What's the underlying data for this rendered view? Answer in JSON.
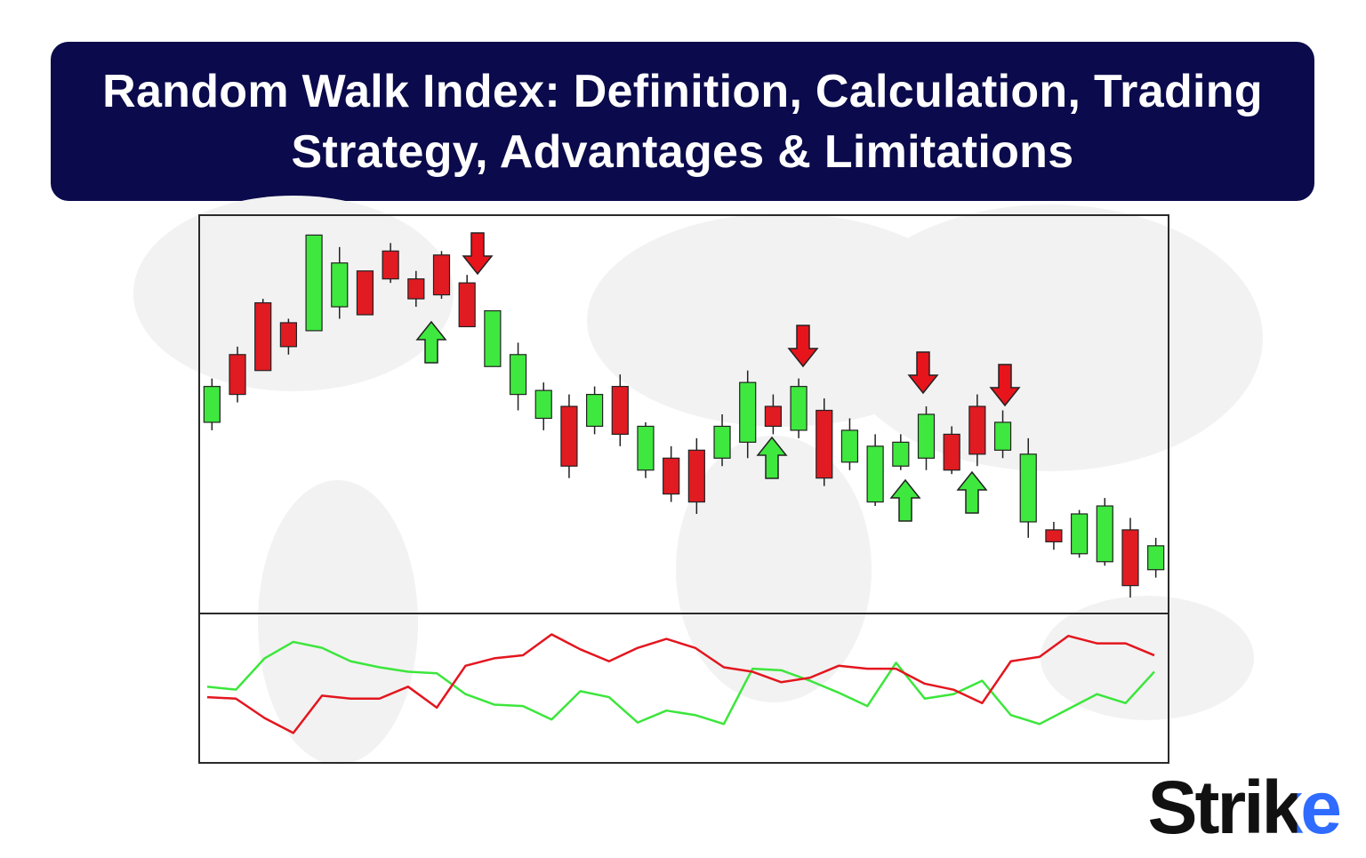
{
  "banner": {
    "title": "Random Walk Index: Definition, Calculation, Trading Strategy, Advantages & Limitations"
  },
  "logo": "Strike",
  "chart_data": [
    {
      "type": "candlestick",
      "up_color": "#3fe83f",
      "down_color": "#e01b22",
      "ylim": [
        0,
        100
      ],
      "categories": [
        null,
        null,
        null,
        null,
        null,
        null,
        null,
        null,
        null,
        null,
        null,
        null,
        null,
        null,
        null,
        null,
        null,
        null,
        null,
        null,
        null,
        null,
        null,
        null,
        null,
        null,
        null,
        null,
        null,
        null,
        null,
        null,
        null,
        null,
        null,
        null,
        null,
        null
      ],
      "open": [
        48,
        65,
        78,
        73,
        71,
        77,
        86,
        91,
        84,
        90,
        83,
        62,
        55,
        49,
        52,
        47,
        57,
        36,
        39,
        41,
        39,
        43,
        52,
        46,
        51,
        38,
        28,
        37,
        39,
        45,
        52,
        41,
        23,
        21,
        15,
        13,
        21,
        11
      ],
      "high": [
        59,
        67,
        79,
        74,
        95,
        92,
        86,
        93,
        86,
        91,
        85,
        76,
        68,
        58,
        55,
        57,
        60,
        48,
        42,
        44,
        50,
        61,
        55,
        59,
        54,
        49,
        45,
        45,
        52,
        47,
        55,
        51,
        44,
        23,
        26,
        29,
        24,
        19
      ],
      "low": [
        46,
        53,
        61,
        65,
        71,
        74,
        75,
        83,
        77,
        79,
        72,
        62,
        51,
        46,
        34,
        45,
        42,
        34,
        28,
        25,
        37,
        39,
        45,
        44,
        32,
        36,
        27,
        36,
        36,
        35,
        37,
        39,
        19,
        16,
        14,
        12,
        4,
        9
      ],
      "close": [
        57,
        55,
        61,
        67,
        95,
        88,
        75,
        84,
        79,
        80,
        72,
        76,
        65,
        56,
        37,
        55,
        45,
        47,
        30,
        28,
        47,
        58,
        47,
        57,
        34,
        46,
        42,
        43,
        50,
        36,
        40,
        48,
        40,
        18,
        25,
        27,
        7,
        17
      ]
    },
    {
      "type": "line",
      "ylim": [
        0,
        100
      ],
      "categories": [
        null,
        null,
        null,
        null,
        null,
        null,
        null,
        null,
        null,
        null,
        null,
        null,
        null,
        null,
        null,
        null,
        null,
        null,
        null,
        null,
        null,
        null,
        null,
        null,
        null,
        null,
        null,
        null,
        null,
        null,
        null,
        null,
        null,
        null
      ],
      "series": [
        {
          "color": "#3ce63c",
          "values": [
            51,
            49,
            70,
            81,
            77,
            68,
            64,
            61,
            60,
            46,
            39,
            38,
            29,
            48,
            44,
            27,
            35,
            32,
            26,
            63,
            62,
            55,
            47,
            38,
            67,
            43,
            46,
            55,
            32,
            26,
            36,
            46,
            40,
            61
          ]
        },
        {
          "color": "#e3161e",
          "values": [
            44,
            43,
            30,
            20,
            45,
            43,
            43,
            51,
            37,
            65,
            70,
            72,
            86,
            76,
            68,
            77,
            83,
            77,
            64,
            61,
            54,
            57,
            65,
            63,
            63,
            53,
            49,
            40,
            68,
            71,
            85,
            80,
            80,
            72
          ]
        }
      ]
    }
  ]
}
